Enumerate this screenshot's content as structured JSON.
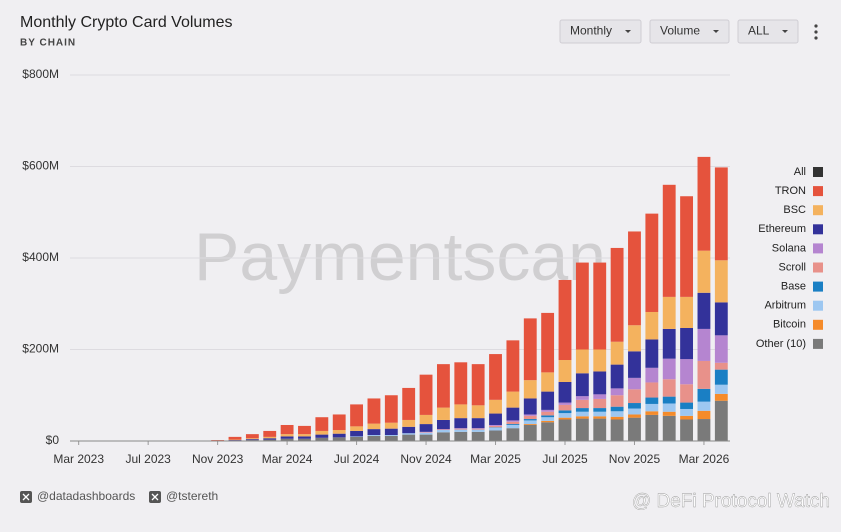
{
  "chart_data": {
    "type": "stacked_bar",
    "title": "Monthly Crypto Card Volumes",
    "subtitle": "BY CHAIN",
    "watermark": "Paymentscan",
    "controls": [
      "Monthly",
      "Volume",
      "ALL"
    ],
    "footer": [
      "@datadashboards",
      "@tstereth"
    ],
    "footer_watermark": "@ DeFi Protocol Watch",
    "legend_all": {
      "name": "All",
      "color": "#333333"
    },
    "categories": [
      "Mar 2023",
      null,
      null,
      null,
      "Jul 2023",
      null,
      null,
      null,
      "Nov 2023",
      null,
      null,
      null,
      "Mar 2024",
      null,
      null,
      null,
      "Jul 2024",
      null,
      null,
      null,
      "Nov 2024",
      null,
      null,
      null,
      "Mar 2025",
      null,
      null,
      null,
      "Jul 2025",
      null,
      null,
      null,
      "Nov 2025",
      null,
      null,
      null,
      "Mar 2026",
      null
    ],
    "ylim": [
      0,
      800
    ],
    "yticks": [
      {
        "value": 0,
        "label": "$0"
      },
      {
        "value": 200,
        "label": "$200M"
      },
      {
        "value": 400,
        "label": "$400M"
      },
      {
        "value": 600,
        "label": "$600M"
      },
      {
        "value": 800,
        "label": "$800M"
      }
    ],
    "grid": true,
    "legend": "right",
    "series": [
      {
        "name": "TRON",
        "color": "#e5533d",
        "values": [
          1,
          1,
          1,
          1,
          1,
          1,
          1,
          1,
          2,
          6,
          9,
          13,
          20,
          18,
          30,
          34,
          48,
          55,
          60,
          70,
          88,
          95,
          92,
          90,
          100,
          112,
          135,
          130,
          175,
          190,
          190,
          205,
          205,
          215,
          245,
          220,
          205,
          203
        ]
      },
      {
        "name": "BSC",
        "color": "#f4b25e",
        "values": [
          0,
          0,
          0,
          0,
          0,
          0,
          0,
          0,
          0,
          1,
          2,
          3,
          5,
          5,
          8,
          8,
          10,
          12,
          13,
          15,
          20,
          27,
          30,
          28,
          30,
          35,
          40,
          42,
          48,
          52,
          48,
          50,
          57,
          60,
          70,
          68,
          92,
          92
        ]
      },
      {
        "name": "Ethereum",
        "color": "#33329a",
        "values": [
          0,
          0,
          0,
          0,
          0,
          0,
          0,
          0,
          0,
          1,
          2,
          3,
          5,
          5,
          7,
          8,
          12,
          13,
          14,
          14,
          17,
          20,
          22,
          22,
          25,
          28,
          35,
          40,
          45,
          50,
          50,
          52,
          58,
          62,
          65,
          68,
          79,
          72
        ]
      },
      {
        "name": "Solana",
        "color": "#b585d0",
        "values": [
          0,
          0,
          0,
          0,
          0,
          0,
          0,
          0,
          0,
          0,
          0,
          0,
          0,
          0,
          0,
          0,
          0,
          0,
          0,
          0,
          1,
          1,
          1,
          1,
          2,
          3,
          3,
          4,
          5,
          8,
          10,
          15,
          25,
          32,
          45,
          55,
          70,
          60
        ]
      },
      {
        "name": "Scroll",
        "color": "#e8918a",
        "values": [
          0,
          0,
          0,
          0,
          0,
          0,
          0,
          0,
          0,
          0,
          0,
          0,
          0,
          0,
          0,
          0,
          0,
          0,
          0,
          0,
          1,
          1,
          2,
          2,
          3,
          5,
          7,
          8,
          12,
          18,
          20,
          25,
          30,
          33,
          38,
          40,
          61,
          15
        ]
      },
      {
        "name": "Base",
        "color": "#1a7fc4",
        "values": [
          0,
          0,
          0,
          0,
          0,
          0,
          0,
          0,
          0,
          0,
          0,
          0,
          0,
          0,
          0,
          0,
          0,
          0,
          0,
          0,
          0,
          0,
          0,
          0,
          1,
          2,
          3,
          4,
          6,
          8,
          8,
          10,
          12,
          14,
          15,
          14,
          28,
          33
        ]
      },
      {
        "name": "Arbitrum",
        "color": "#9dc7f1",
        "values": [
          0,
          0,
          0,
          0,
          0,
          0,
          0,
          0,
          0,
          0,
          0,
          0,
          0,
          0,
          0,
          0,
          1,
          2,
          2,
          3,
          4,
          5,
          5,
          5,
          6,
          7,
          8,
          8,
          10,
          10,
          10,
          12,
          13,
          16,
          18,
          15,
          20,
          20
        ]
      },
      {
        "name": "Bitcoin",
        "color": "#f58b2a",
        "values": [
          0,
          0,
          0,
          0,
          0,
          0,
          0,
          0,
          0,
          0,
          0,
          0,
          0,
          0,
          0,
          0,
          0,
          0,
          0,
          0,
          0,
          0,
          0,
          0,
          0,
          0,
          2,
          3,
          4,
          5,
          5,
          6,
          7,
          8,
          9,
          8,
          18,
          15
        ]
      },
      {
        "name": "Other (10)",
        "color": "#7a7a7a",
        "values": [
          0,
          0,
          0,
          0,
          0,
          0,
          0,
          0,
          0,
          1,
          2,
          3,
          5,
          5,
          7,
          8,
          9,
          11,
          11,
          14,
          14,
          19,
          20,
          20,
          23,
          28,
          35,
          41,
          47,
          49,
          49,
          47,
          51,
          57,
          55,
          47,
          48,
          88
        ]
      }
    ]
  }
}
